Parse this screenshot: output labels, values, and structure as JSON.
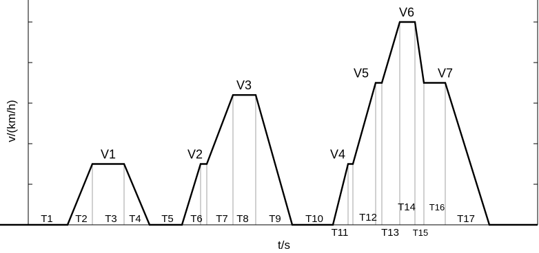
{
  "chart_data": {
    "type": "line",
    "title": "",
    "xlabel": "t/s",
    "ylabel": "v/(km/h)",
    "xlim": [
      0,
      780
    ],
    "ylim": [
      0,
      5
    ],
    "yticks": [
      0,
      1,
      2,
      3,
      4,
      5
    ],
    "grid": false,
    "series": [
      {
        "points": [
          [
            0,
            0
          ],
          [
            98,
            0
          ],
          [
            134,
            1.5
          ],
          [
            180,
            1.5
          ],
          [
            217,
            0
          ],
          [
            264,
            0
          ],
          [
            291,
            1.5
          ],
          [
            300,
            1.5
          ],
          [
            338,
            3.2
          ],
          [
            371,
            3.2
          ],
          [
            424,
            0
          ],
          [
            483,
            0
          ],
          [
            505,
            1.5
          ],
          [
            512,
            1.5
          ],
          [
            545,
            3.5
          ],
          [
            554,
            3.5
          ],
          [
            580,
            5
          ],
          [
            602,
            5
          ],
          [
            615,
            3.5
          ],
          [
            646,
            3.5
          ],
          [
            710,
            0
          ],
          [
            780,
            0
          ]
        ]
      }
    ],
    "guides_x": [
      98,
      134,
      180,
      217,
      264,
      291,
      300,
      338,
      371,
      424,
      483,
      505,
      512,
      545,
      554,
      580,
      602,
      615,
      646,
      710
    ],
    "speed_labels": [
      {
        "text": "V1",
        "x": 157,
        "y": 1.5
      },
      {
        "text": "V2",
        "x": 283,
        "y": 1.5
      },
      {
        "text": "V3",
        "x": 354,
        "y": 3.2
      },
      {
        "text": "V4",
        "x": 490,
        "y": 1.5
      },
      {
        "text": "V5",
        "x": 524,
        "y": 3.5
      },
      {
        "text": "V6",
        "x": 590,
        "y": 5
      },
      {
        "text": "V7",
        "x": 646,
        "y": 3.5
      }
    ],
    "time_labels": [
      {
        "text": "T1",
        "x": 68,
        "row": "top"
      },
      {
        "text": "T2",
        "x": 118,
        "row": "top"
      },
      {
        "text": "T3",
        "x": 161,
        "row": "top"
      },
      {
        "text": "T4",
        "x": 196,
        "row": "top"
      },
      {
        "text": "T5",
        "x": 243,
        "row": "top"
      },
      {
        "text": "T6",
        "x": 285,
        "row": "top"
      },
      {
        "text": "T7",
        "x": 322,
        "row": "top"
      },
      {
        "text": "T8",
        "x": 352,
        "row": "top"
      },
      {
        "text": "T9",
        "x": 399,
        "row": "top"
      },
      {
        "text": "T10",
        "x": 456,
        "row": "top"
      },
      {
        "text": "T11",
        "x": 493,
        "row": "bottom"
      },
      {
        "text": "T12",
        "x": 534,
        "row": "upper"
      },
      {
        "text": "T13",
        "x": 566,
        "row": "bottom"
      },
      {
        "text": "T14",
        "x": 590,
        "row": "high"
      },
      {
        "text": "T15",
        "x": 610,
        "row": "bottom-small"
      },
      {
        "text": "T16",
        "x": 634,
        "row": "high-small"
      },
      {
        "text": "T17",
        "x": 676,
        "row": "top"
      }
    ]
  }
}
